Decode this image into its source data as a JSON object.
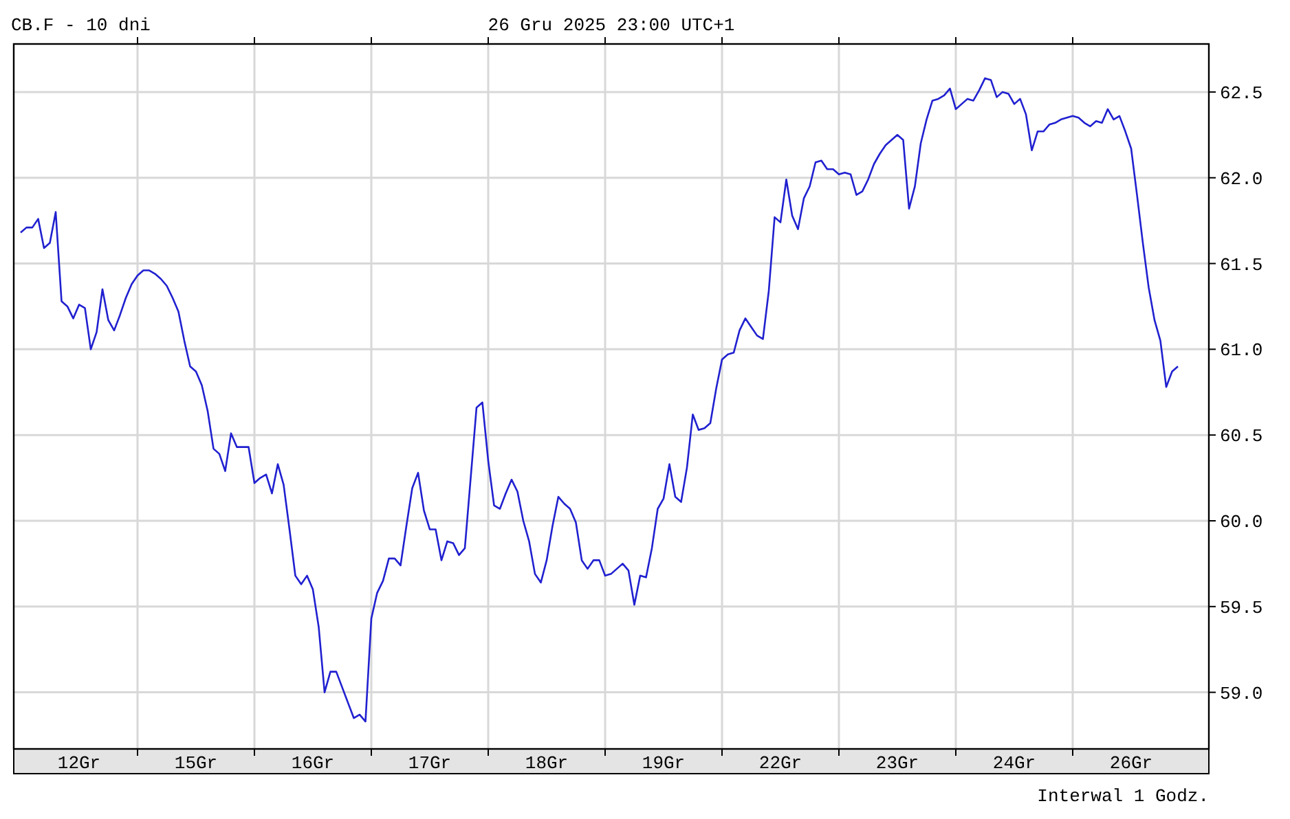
{
  "chart_data": {
    "type": "line",
    "title": "CB.F - 10 dni",
    "subtitle": "26 Gru 2025 23:00 UTC+1",
    "annotations": [
      "Interwal 1 Godz."
    ],
    "categories": [
      null,
      null,
      null,
      null,
      null,
      null,
      null,
      null,
      null,
      null,
      "12Gr",
      null,
      null,
      null,
      null,
      null,
      null,
      null,
      null,
      null,
      null,
      null,
      null,
      null,
      null,
      null,
      null,
      null,
      null,
      null,
      "15Gr",
      null,
      null,
      null,
      null,
      null,
      null,
      null,
      null,
      null,
      null,
      null,
      null,
      null,
      null,
      null,
      null,
      null,
      null,
      null,
      "16Gr",
      null,
      null,
      null,
      null,
      null,
      null,
      null,
      null,
      null,
      null,
      null,
      null,
      null,
      null,
      null,
      null,
      null,
      null,
      null,
      "17Gr",
      null,
      null,
      null,
      null,
      null,
      null,
      null,
      null,
      null,
      null,
      null,
      null,
      null,
      null,
      null,
      null,
      null,
      null,
      null,
      "18Gr",
      null,
      null,
      null,
      null,
      null,
      null,
      null,
      null,
      null,
      null,
      null,
      null,
      null,
      null,
      null,
      null,
      null,
      null,
      null,
      "19Gr",
      null,
      null,
      null,
      null,
      null,
      null,
      null,
      null,
      null,
      null,
      null,
      null,
      null,
      null,
      null,
      null,
      null,
      null,
      null,
      "22Gr",
      null,
      null,
      null,
      null,
      null,
      null,
      null,
      null,
      null,
      null,
      null,
      null,
      null,
      null,
      null,
      null,
      null,
      null,
      null,
      "23Gr",
      null,
      null,
      null,
      null,
      null,
      null,
      null,
      null,
      null,
      null,
      null,
      null,
      null,
      null,
      null,
      null,
      null,
      null,
      null,
      "24Gr",
      null,
      null,
      null,
      null,
      null,
      null,
      null,
      null,
      null,
      null,
      null,
      null,
      null,
      null,
      null,
      null,
      null,
      null,
      null,
      "26Gr",
      null,
      null,
      null,
      null,
      null,
      null,
      null,
      null
    ],
    "ylim": [
      58.67,
      62.78
    ],
    "yticks": [
      {
        "value": 59,
        "label": "59.0"
      },
      59.5,
      {
        "value": 60,
        "label": "60.0"
      },
      60.5,
      {
        "value": 61,
        "label": "61.0"
      },
      61.5,
      {
        "value": 62,
        "label": "62.0"
      },
      62.5
    ],
    "grid": true,
    "marker": "none",
    "line_style": "solid",
    "series": [
      {
        "color": "#2020d0",
        "values": [
          61.68,
          61.71,
          61.71,
          61.76,
          61.59,
          61.62,
          61.8,
          61.28,
          61.25,
          61.18,
          61.26,
          61.24,
          61.0,
          61.1,
          61.35,
          61.17,
          61.11,
          61.2,
          61.3,
          61.38,
          61.43,
          61.46,
          61.46,
          61.44,
          61.41,
          61.37,
          61.3,
          61.22,
          61.05,
          60.9,
          60.87,
          60.79,
          60.64,
          60.42,
          60.39,
          60.29,
          60.51,
          60.43,
          60.43,
          60.43,
          60.22,
          60.25,
          60.27,
          60.16,
          60.33,
          60.21,
          59.95,
          59.68,
          59.63,
          59.68,
          59.6,
          59.38,
          59.0,
          59.12,
          59.12,
          59.03,
          58.94,
          58.85,
          58.87,
          58.83,
          59.43,
          59.58,
          59.65,
          59.78,
          59.78,
          59.74,
          59.97,
          60.19,
          60.28,
          60.06,
          59.95,
          59.95,
          59.77,
          59.88,
          59.87,
          59.8,
          59.84,
          60.25,
          60.66,
          60.69,
          60.35,
          60.09,
          60.07,
          60.16,
          60.24,
          60.17,
          60.0,
          59.88,
          59.69,
          59.64,
          59.77,
          59.97,
          60.14,
          60.1,
          60.07,
          59.99,
          59.77,
          59.72,
          59.77,
          59.77,
          59.68,
          59.69,
          59.72,
          59.75,
          59.71,
          59.51,
          59.68,
          59.67,
          59.84,
          60.07,
          60.13,
          60.33,
          60.14,
          60.11,
          60.31,
          60.62,
          60.53,
          60.54,
          60.57,
          60.77,
          60.94,
          60.97,
          60.98,
          61.11,
          61.18,
          61.13,
          61.08,
          61.06,
          61.34,
          61.77,
          61.74,
          61.99,
          61.78,
          61.7,
          61.88,
          61.95,
          62.09,
          62.1,
          62.05,
          62.05,
          62.02,
          62.03,
          62.02,
          61.9,
          61.92,
          61.99,
          62.08,
          62.14,
          62.19,
          62.22,
          62.25,
          62.22,
          61.82,
          61.95,
          62.2,
          62.34,
          62.45,
          62.46,
          62.48,
          62.52,
          62.4,
          62.43,
          62.46,
          62.45,
          62.51,
          62.58,
          62.57,
          62.47,
          62.5,
          62.49,
          62.43,
          62.46,
          62.37,
          62.16,
          62.27,
          62.27,
          62.31,
          62.32,
          62.34,
          62.35,
          62.36,
          62.35,
          62.32,
          62.3,
          62.33,
          62.32,
          62.4,
          62.34,
          62.36,
          62.27,
          62.17,
          61.9,
          61.62,
          61.36,
          61.17,
          61.05,
          60.78,
          60.87,
          60.9
        ]
      }
    ]
  }
}
